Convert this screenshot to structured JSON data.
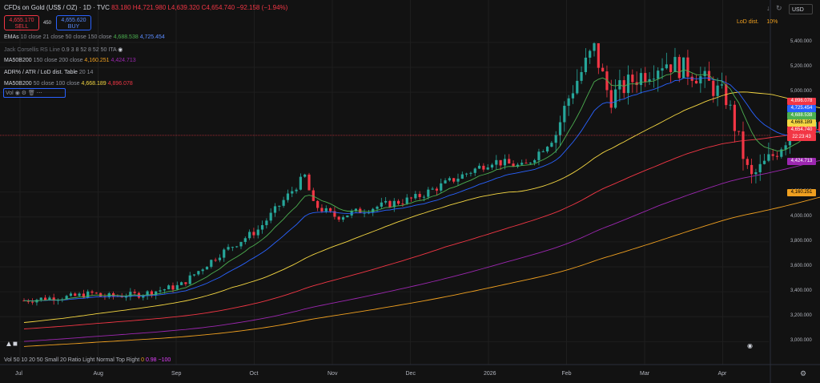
{
  "header": {
    "symbol": "CFDs on Gold (US$ / OZ) · 1D · TVC",
    "ohlc": "83.180 H4,721.980 L4,639.320 C4,654.740 −92.158 (−1.94%)",
    "sell_price": "4,655.170",
    "sell_label": "SELL",
    "spread": "450",
    "buy_price": "4,655.620",
    "buy_label": "BUY",
    "currency": "USD",
    "lod_label": "LoD dist.",
    "lod_value": "10%"
  },
  "legends": [
    {
      "name": "EMAs",
      "args": "10 close 21 close 50 close 150 close",
      "v1": "4,688.538",
      "c1": "#4caf50",
      "v2": "4,725.454",
      "c2": "#5b8cff"
    },
    {
      "name": "Jack Corsellis RS Line",
      "args": "0.9 3 8 52 8 52 50 ITA",
      "v1": "",
      "c1": "#8c8f98",
      "v2": "",
      "c2": "#8c8f98",
      "dim": true
    },
    {
      "name": "MA50B200",
      "args": "150 close 200 close",
      "v1": "4,160.251",
      "c1": "#f0a020",
      "v2": "4,424.713",
      "c2": "#9c27b0"
    },
    {
      "name": "ADR% / ATR / LoD dist. Table",
      "args": "20 14",
      "v1": "",
      "c1": "#8c8f98",
      "v2": "",
      "c2": "#8c8f98"
    },
    {
      "name": "MA50B200",
      "args": "50 close 100 close",
      "v1": "4,668.189",
      "c1": "#f5d742",
      "v2": "4,896.078",
      "c2": "#f23645"
    }
  ],
  "vol_box": "Vol",
  "vol_legend": {
    "text": "Vol 50 10 20 50 Small 20 Ratio Light Normal Top Right",
    "v1": "0",
    "v2": "0.98",
    "v3": "−100"
  },
  "price_axis": [
    "5,400.000",
    "5,200.000",
    "5,000.000",
    "4,200.000",
    "4,000.000",
    "3,800.000",
    "3,600.000",
    "3,400.000",
    "3,200.000",
    "3,000.000"
  ],
  "price_tags": [
    {
      "text": "4,896.078",
      "bg": "#f23645",
      "fg": "#ffffff"
    },
    {
      "text": "4,725.454",
      "bg": "#2962ff",
      "fg": "#ffffff"
    },
    {
      "text": "4,688.538",
      "bg": "#4caf50",
      "fg": "#ffffff"
    },
    {
      "text": "4,668.189",
      "bg": "#f5d742",
      "fg": "#000000"
    },
    {
      "text": "4,654.740",
      "bg": "#f23645",
      "fg": "#ffffff"
    },
    {
      "text": "22:23:43",
      "bg": "#f23645",
      "fg": "#ffffff"
    },
    {
      "text": "4,424.713",
      "bg": "#9c27b0",
      "fg": "#ffffff"
    },
    {
      "text": "4,160.251",
      "bg": "#f0a020",
      "fg": "#000000"
    }
  ],
  "months": [
    "Jul",
    "Aug",
    "Sep",
    "Oct",
    "Nov",
    "Dec",
    "2026",
    "Feb",
    "Mar",
    "Apr"
  ],
  "colors": {
    "up": "#26a69a",
    "down": "#f23645",
    "bg": "#121212",
    "ema10": "#4caf50",
    "ema21": "#2962ff",
    "ma50": "#f5d742",
    "ma100": "#f23645",
    "ma150": "#9c27b0",
    "ma200": "#f0a020"
  },
  "chart_data": {
    "type": "candlestick",
    "ylim": [
      2900,
      5560
    ],
    "x": [
      "Jul",
      "Aug",
      "Sep",
      "Oct",
      "Nov",
      "Dec",
      "2026",
      "Feb",
      "Mar",
      "Apr"
    ],
    "close_path": [
      [
        0,
        3330
      ],
      [
        0.3,
        3350
      ],
      [
        0.6,
        3360
      ],
      [
        0.9,
        3390
      ],
      [
        1.0,
        3360
      ],
      [
        1.5,
        3380
      ],
      [
        2.0,
        3450
      ],
      [
        2.5,
        3700
      ],
      [
        3.0,
        3900
      ],
      [
        3.6,
        4330
      ],
      [
        3.7,
        4100
      ],
      [
        4.0,
        4000
      ],
      [
        4.5,
        4080
      ],
      [
        5.0,
        4150
      ],
      [
        5.5,
        4300
      ],
      [
        6.0,
        4450
      ],
      [
        6.4,
        4400
      ],
      [
        6.8,
        4650
      ],
      [
        7.0,
        5000
      ],
      [
        7.3,
        5350
      ],
      [
        7.5,
        4950
      ],
      [
        7.8,
        5100
      ],
      [
        8.2,
        5250
      ],
      [
        8.6,
        5150
      ],
      [
        9.0,
        4950
      ],
      [
        9.3,
        4300
      ],
      [
        9.6,
        4500
      ],
      [
        9.9,
        4750
      ],
      [
        10.3,
        4655
      ]
    ],
    "series": [
      {
        "name": "EMA 10",
        "end": 4688.538
      },
      {
        "name": "EMA 21",
        "end": 4725.454
      },
      {
        "name": "MA 50",
        "end": 4668.189
      },
      {
        "name": "MA 100",
        "end": 4896.078
      },
      {
        "name": "MA 150",
        "end": 4424.713
      },
      {
        "name": "MA 200",
        "end": 4160.251
      }
    ]
  }
}
